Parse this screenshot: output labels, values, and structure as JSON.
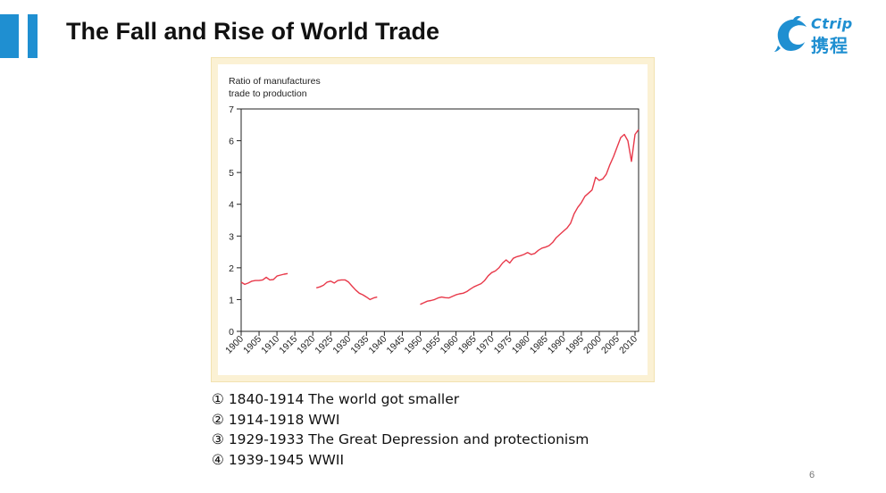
{
  "slide": {
    "title": "The Fall and Rise of World Trade",
    "page_number": "6"
  },
  "logo": {
    "brand": "Ctrip",
    "chinese": "携程",
    "icon": "dolphin-logo-icon"
  },
  "colors": {
    "accent": "#1f8fd1",
    "line": "#e8394a",
    "frame": "#fbf1d4"
  },
  "notes": [
    "① 1840-1914 The world got smaller",
    "② 1914-1918 WWI",
    "③ 1929-1933 The Great Depression and protectionism",
    "④ 1939-1945 WWII"
  ],
  "chart_data": {
    "type": "line",
    "title": "",
    "ylabel_lines": [
      "Ratio of manufactures",
      "trade to production"
    ],
    "xlabel": "",
    "xlim": [
      1900,
      2011
    ],
    "ylim": [
      0,
      7
    ],
    "yticks": [
      0,
      1,
      2,
      3,
      4,
      5,
      6,
      7
    ],
    "xticks": [
      1900,
      1905,
      1910,
      1915,
      1920,
      1925,
      1930,
      1935,
      1940,
      1945,
      1950,
      1955,
      1960,
      1965,
      1970,
      1975,
      1980,
      1985,
      1990,
      1995,
      2000,
      2005,
      2010
    ],
    "grid": false,
    "segments": [
      {
        "x": [
          1900,
          1901,
          1902,
          1903,
          1904,
          1905,
          1906,
          1907,
          1908,
          1909,
          1910,
          1911,
          1912,
          1913
        ],
        "y": [
          1.55,
          1.48,
          1.52,
          1.58,
          1.6,
          1.6,
          1.62,
          1.7,
          1.62,
          1.63,
          1.74,
          1.77,
          1.8,
          1.82
        ]
      },
      {
        "x": [
          1921,
          1922,
          1923,
          1924,
          1925,
          1926,
          1927,
          1928,
          1929,
          1930,
          1931,
          1932,
          1933,
          1934,
          1935,
          1936,
          1937,
          1938
        ],
        "y": [
          1.37,
          1.4,
          1.45,
          1.55,
          1.58,
          1.52,
          1.6,
          1.62,
          1.62,
          1.55,
          1.42,
          1.3,
          1.2,
          1.15,
          1.08,
          1.0,
          1.05,
          1.08
        ]
      },
      {
        "x": [
          1950,
          1951,
          1952,
          1953,
          1954,
          1955,
          1956,
          1957,
          1958,
          1959,
          1960,
          1961,
          1962,
          1963,
          1964,
          1965,
          1966,
          1967,
          1968,
          1969,
          1970,
          1971,
          1972,
          1973,
          1974,
          1975,
          1976,
          1977,
          1978,
          1979,
          1980,
          1981,
          1982,
          1983,
          1984,
          1985,
          1986,
          1987,
          1988,
          1989,
          1990,
          1991,
          1992,
          1993,
          1994,
          1995,
          1996,
          1997,
          1998,
          1999,
          2000,
          2001,
          2002,
          2003,
          2004,
          2005,
          2006,
          2007,
          2008,
          2009,
          2010,
          2011
        ],
        "y": [
          0.85,
          0.9,
          0.95,
          0.97,
          1.0,
          1.05,
          1.08,
          1.06,
          1.05,
          1.1,
          1.15,
          1.18,
          1.2,
          1.25,
          1.33,
          1.4,
          1.45,
          1.5,
          1.6,
          1.75,
          1.85,
          1.9,
          2.0,
          2.15,
          2.25,
          2.15,
          2.3,
          2.35,
          2.38,
          2.42,
          2.48,
          2.42,
          2.45,
          2.55,
          2.62,
          2.65,
          2.7,
          2.8,
          2.95,
          3.05,
          3.15,
          3.25,
          3.4,
          3.7,
          3.9,
          4.05,
          4.25,
          4.35,
          4.45,
          4.85,
          4.75,
          4.8,
          4.95,
          5.25,
          5.5,
          5.8,
          6.1,
          6.2,
          6.0,
          5.35,
          6.2,
          6.35
        ]
      }
    ]
  }
}
